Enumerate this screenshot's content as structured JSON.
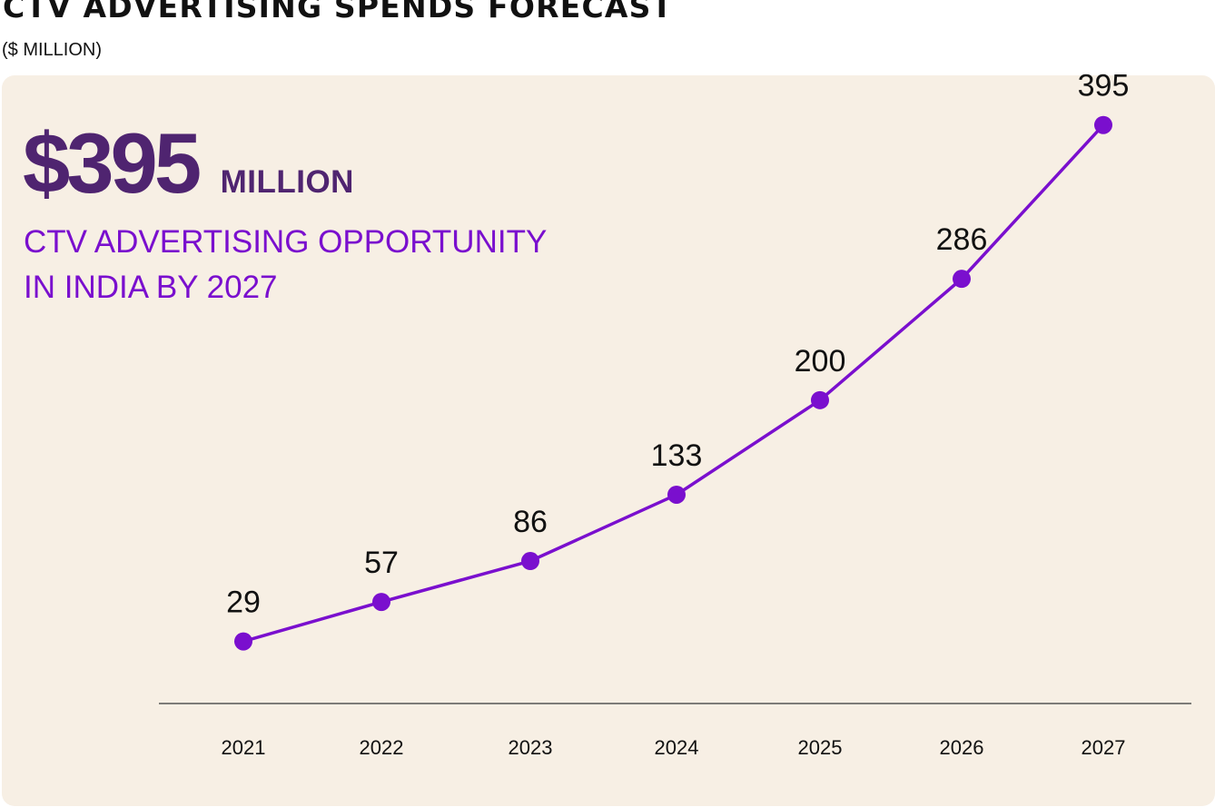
{
  "title": "CTV ADVERTISING SPENDS FORECAST",
  "subtitle": "($ MILLION)",
  "headline": {
    "value": "$395",
    "unit": "MILLION",
    "desc_line1": "CTV ADVERTISING OPPORTUNITY",
    "desc_line2": "IN INDIA BY 2027"
  },
  "colors": {
    "line": "#7a0fce",
    "panel": "#f7efe4",
    "headline": "#4f2470",
    "axis": "#555555"
  },
  "chart_data": {
    "type": "line",
    "title": "CTV ADVERTISING SPENDS FORECAST",
    "ylabel": "($ MILLION)",
    "categories": [
      "2021",
      "2022",
      "2023",
      "2024",
      "2025",
      "2026",
      "2027"
    ],
    "values": [
      29,
      57,
      86,
      133,
      200,
      286,
      395
    ],
    "data_labels": [
      "29",
      "57",
      "86",
      "133",
      "200",
      "286",
      "395"
    ],
    "ylim": [
      -15,
      445
    ],
    "grid": false,
    "legend": "none"
  }
}
